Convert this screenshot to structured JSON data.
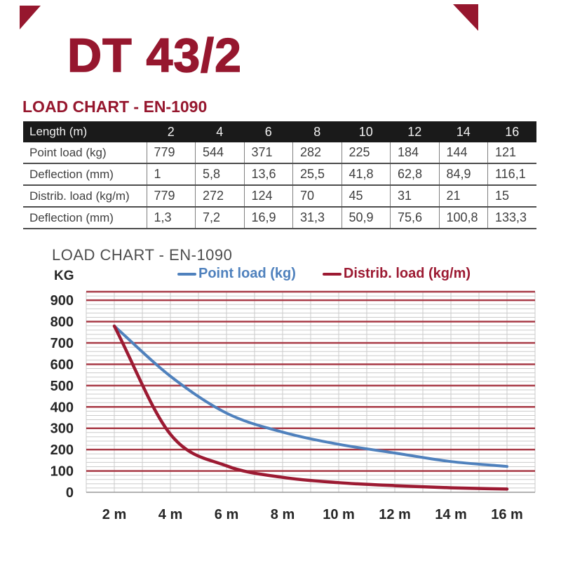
{
  "document": {
    "product_title": "DT 43/2",
    "section_heading": "LOAD CHART - EN-1090"
  },
  "colors": {
    "accent_red": "#96172E",
    "table_header_bg": "#1A1A1A",
    "point_load_blue": "#4F81BD",
    "distrib_load_red": "#9C1A32",
    "grid_major_red": "#A83A46",
    "grid_minor_gray": "#CBCBCB",
    "axis_gray": "#999999",
    "tick_label_color": "#262626"
  },
  "table": {
    "header": {
      "label": "Length (m)",
      "columns": [
        "2",
        "4",
        "6",
        "8",
        "10",
        "12",
        "14",
        "16"
      ]
    },
    "rows": [
      {
        "label": "Point load (kg)",
        "values": [
          "779",
          "544",
          "371",
          "282",
          "225",
          "184",
          "144",
          "121"
        ]
      },
      {
        "label": "Deflection (mm)",
        "values": [
          "1",
          "5,8",
          "13,6",
          "25,5",
          "41,8",
          "62,8",
          "84,9",
          "116,1"
        ]
      },
      {
        "label": "Distrib. load (kg/m)",
        "values": [
          "779",
          "272",
          "124",
          "70",
          "45",
          "31",
          "21",
          "15"
        ]
      },
      {
        "label": "Deflection (mm)",
        "values": [
          "1,3",
          "7,2",
          "16,9",
          "31,3",
          "50,9",
          "75,6",
          "100,8",
          "133,3"
        ]
      }
    ]
  },
  "chart": {
    "title": "LOAD CHART - EN-1090",
    "y_axis_unit": "KG",
    "legend": [
      {
        "label": "Point load (kg)",
        "color": "#4F81BD"
      },
      {
        "label": "Distrib. load (kg/m)",
        "color": "#9C1A32"
      }
    ]
  },
  "chart_data": {
    "type": "line",
    "title": "LOAD CHART - EN-1090",
    "categories": [
      "2 m",
      "4 m",
      "6 m",
      "8 m",
      "10 m",
      "12 m",
      "14 m",
      "16 m"
    ],
    "x_values_m": [
      2,
      4,
      6,
      8,
      10,
      12,
      14,
      16
    ],
    "series": [
      {
        "name": "Point load (kg)",
        "color": "#4F81BD",
        "values": [
          779,
          544,
          371,
          282,
          225,
          184,
          144,
          121
        ]
      },
      {
        "name": "Distrib. load (kg/m)",
        "color": "#9C1A32",
        "values": [
          779,
          272,
          124,
          70,
          45,
          31,
          21,
          15
        ]
      }
    ],
    "ylabel": "KG",
    "xlabel": "",
    "y_ticks": [
      0,
      100,
      200,
      300,
      400,
      500,
      600,
      700,
      800,
      900
    ],
    "ylim": [
      0,
      940
    ],
    "grid": {
      "horizontal_minor_step": 20,
      "horizontal_major_step": 100,
      "vertical_lines_per_category": 2,
      "major_color": "#A83A46",
      "minor_color": "#CBCBCB"
    },
    "legend_position": "top",
    "smoothed_lines": true
  }
}
